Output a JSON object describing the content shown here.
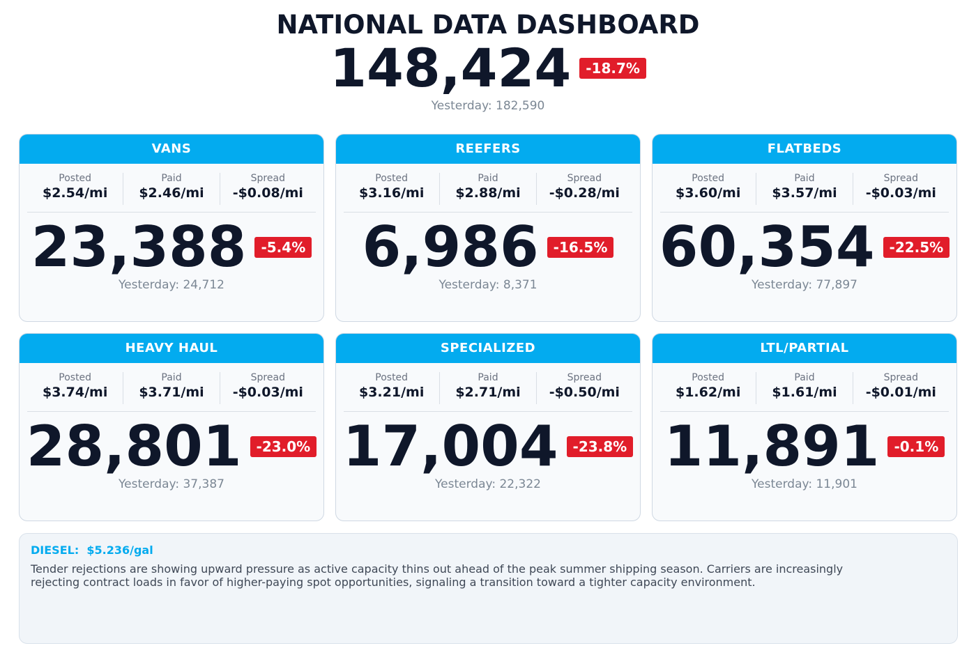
{
  "header": {
    "title": "NATIONAL DATA DASHBOARD",
    "total": "148,424",
    "change": "-18.7%",
    "yesterday": "Yesterday: 182,590"
  },
  "cards": [
    {
      "title": "VANS",
      "stats": [
        {
          "label": "Posted",
          "value": "$2.54/mi"
        },
        {
          "label": "Paid",
          "value": "$2.46/mi"
        },
        {
          "label": "Spread",
          "value": "-$0.08/mi"
        }
      ],
      "count": "23,388",
      "change": "-5.4%",
      "yesterday": "Yesterday: 24,712"
    },
    {
      "title": "REEFERS",
      "stats": [
        {
          "label": "Posted",
          "value": "$3.16/mi"
        },
        {
          "label": "Paid",
          "value": "$2.88/mi"
        },
        {
          "label": "Spread",
          "value": "-$0.28/mi"
        }
      ],
      "count": "6,986",
      "change": "-16.5%",
      "yesterday": "Yesterday: 8,371"
    },
    {
      "title": "FLATBEDS",
      "stats": [
        {
          "label": "Posted",
          "value": "$3.60/mi"
        },
        {
          "label": "Paid",
          "value": "$3.57/mi"
        },
        {
          "label": "Spread",
          "value": "-$0.03/mi"
        }
      ],
      "count": "60,354",
      "change": "-22.5%",
      "yesterday": "Yesterday: 77,897"
    },
    {
      "title": "HEAVY HAUL",
      "stats": [
        {
          "label": "Posted",
          "value": "$3.74/mi"
        },
        {
          "label": "Paid",
          "value": "$3.71/mi"
        },
        {
          "label": "Spread",
          "value": "-$0.03/mi"
        }
      ],
      "count": "28,801",
      "change": "-23.0%",
      "yesterday": "Yesterday: 37,387"
    },
    {
      "title": "SPECIALIZED",
      "stats": [
        {
          "label": "Posted",
          "value": "$3.21/mi"
        },
        {
          "label": "Paid",
          "value": "$2.71/mi"
        },
        {
          "label": "Spread",
          "value": "-$0.50/mi"
        }
      ],
      "count": "17,004",
      "change": "-23.8%",
      "yesterday": "Yesterday: 22,322"
    },
    {
      "title": "LTL/PARTIAL",
      "stats": [
        {
          "label": "Posted",
          "value": "$1.62/mi"
        },
        {
          "label": "Paid",
          "value": "$1.61/mi"
        },
        {
          "label": "Spread",
          "value": "-$0.01/mi"
        }
      ],
      "count": "11,891",
      "change": "-0.1%",
      "yesterday": "Yesterday: 11,901"
    }
  ],
  "note": {
    "label": "DIESEL:",
    "value": "$5.236/gal",
    "text": "Tender rejections are showing upward pressure as active capacity thins out ahead of the peak summer shipping season. Carriers are increasingly rejecting contract loads in favor of higher-paying spot opportunities, signaling a transition toward a tighter capacity environment."
  }
}
